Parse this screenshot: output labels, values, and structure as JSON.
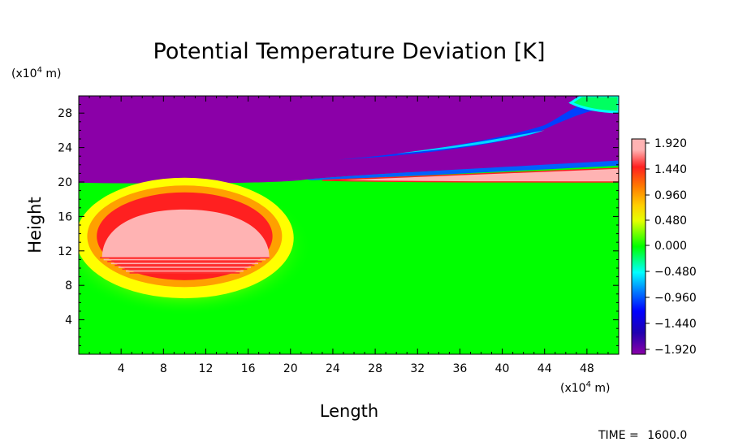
{
  "chart_data": {
    "type": "heatmap",
    "title": "Potential Temperature Deviation [K]",
    "xlabel": "Length",
    "ylabel": "Height",
    "x_unit": "(x10^4 m)",
    "y_unit": "(x10^4 m)",
    "xlim": [
      0,
      51
    ],
    "ylim": [
      0,
      30
    ],
    "xticks": [
      4,
      8,
      12,
      16,
      20,
      24,
      28,
      32,
      36,
      40,
      44,
      48
    ],
    "yticks": [
      4,
      8,
      12,
      16,
      20,
      24,
      28
    ],
    "colorbar": {
      "levels": [
        -1.92,
        -1.44,
        -0.96,
        -0.48,
        0.0,
        0.48,
        0.96,
        1.44,
        1.92
      ],
      "labels": [
        "1.920",
        "1.440",
        "0.960",
        "0.480",
        "0.000",
        "−0.480",
        "−0.960",
        "−1.440",
        "−1.920"
      ],
      "range": [
        -2.0,
        2.0
      ]
    },
    "colors": {
      "high": "#ffb3b3",
      "neutral": "#00ff00",
      "low": "#8b00a8"
    },
    "features": [
      {
        "region": "warm-bubble",
        "center": [
          10,
          14
        ],
        "max_value": 2.0
      },
      {
        "region": "upper-cold-layer",
        "y_range": [
          20,
          30
        ],
        "value": -2.0
      },
      {
        "region": "warm-layer-above-tropopause",
        "x_range": [
          22,
          51
        ],
        "y": 20.5,
        "max_value": 2.0
      },
      {
        "region": "wave-band",
        "x_range": [
          24,
          51
        ],
        "y_range": [
          22.5,
          30
        ],
        "value": -1.0
      }
    ],
    "time_label": "TIME =",
    "time_value": "1600.0"
  }
}
